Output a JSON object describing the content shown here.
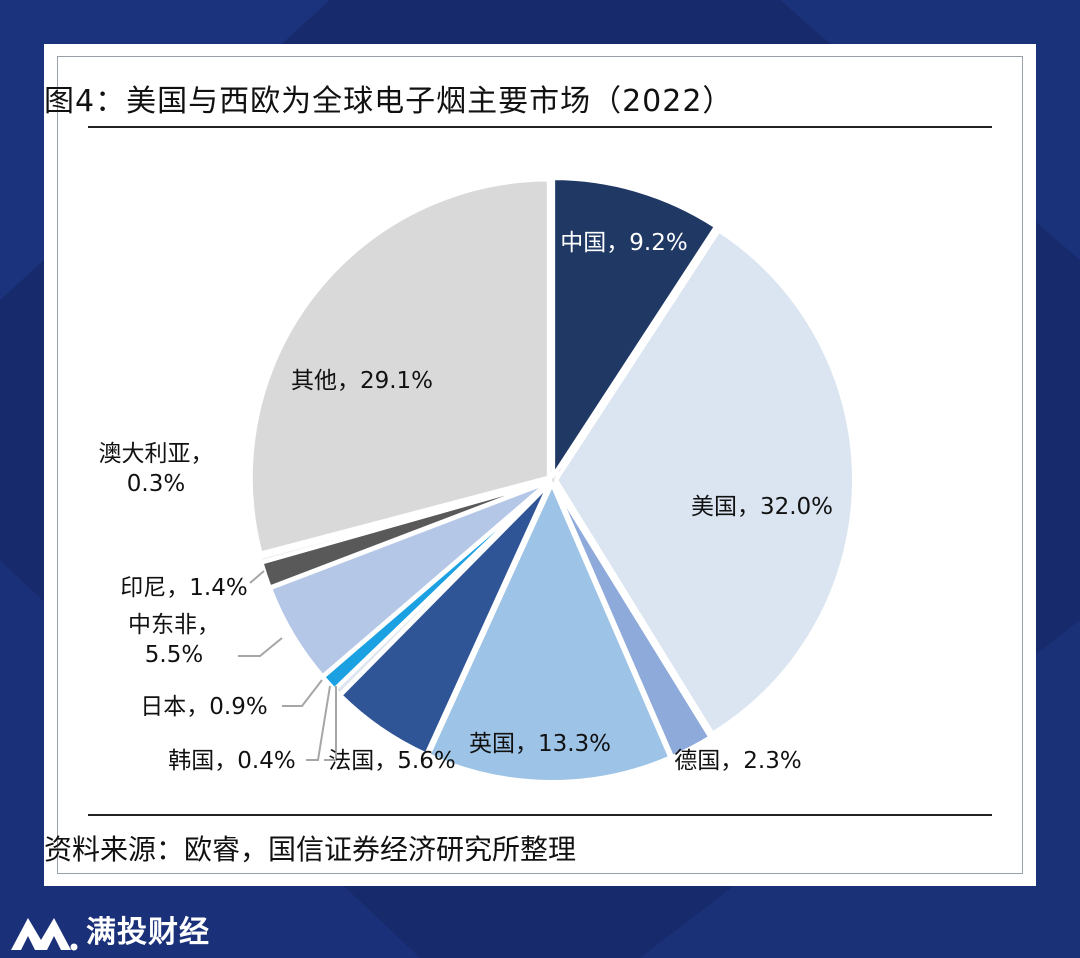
{
  "figure": {
    "title": "图4：美国与西欧为全球电子烟主要市场（2022）",
    "source": "资料来源：欧睿，国信证券经济研究所整理"
  },
  "watermark": "满投财经",
  "footer": {
    "brand": "满投财经",
    "logo_icon": "mantou-logo-icon"
  },
  "colors": {
    "background": "#172a6b",
    "card": "#ffffff"
  },
  "chart_data": {
    "type": "pie",
    "unit": "%",
    "slices": [
      {
        "name": "中国",
        "value": 9.2,
        "label": "中国，9.2%",
        "color": "#1f3864"
      },
      {
        "name": "美国",
        "value": 32.0,
        "label": "美国，32.0%",
        "color": "#dbe5f1"
      },
      {
        "name": "德国",
        "value": 2.3,
        "label": "德国，2.3%",
        "color": "#8eaadb"
      },
      {
        "name": "英国",
        "value": 13.3,
        "label": "英国，13.3%",
        "color": "#9dc3e6"
      },
      {
        "name": "法国",
        "value": 5.6,
        "label": "法国，5.6%",
        "color": "#2f5597"
      },
      {
        "name": "韩国",
        "value": 0.4,
        "label": "韩国，0.4%",
        "color": "#dfe6ee"
      },
      {
        "name": "日本",
        "value": 0.9,
        "label": "日本，0.9%",
        "color": "#1ba1e2"
      },
      {
        "name": "中东非",
        "value": 5.5,
        "label": [
          "中东非，",
          "5.5%"
        ],
        "color": "#b4c7e7"
      },
      {
        "name": "印尼",
        "value": 1.4,
        "label": "印尼，1.4%",
        "color": "#595959"
      },
      {
        "name": "澳大利亚",
        "value": 0.3,
        "label": [
          "澳大利亚，",
          "0.3%"
        ],
        "color": "#f2f2f2"
      },
      {
        "name": "其他",
        "value": 29.1,
        "label": "其他，29.1%",
        "color": "#d9d9d9"
      }
    ]
  }
}
